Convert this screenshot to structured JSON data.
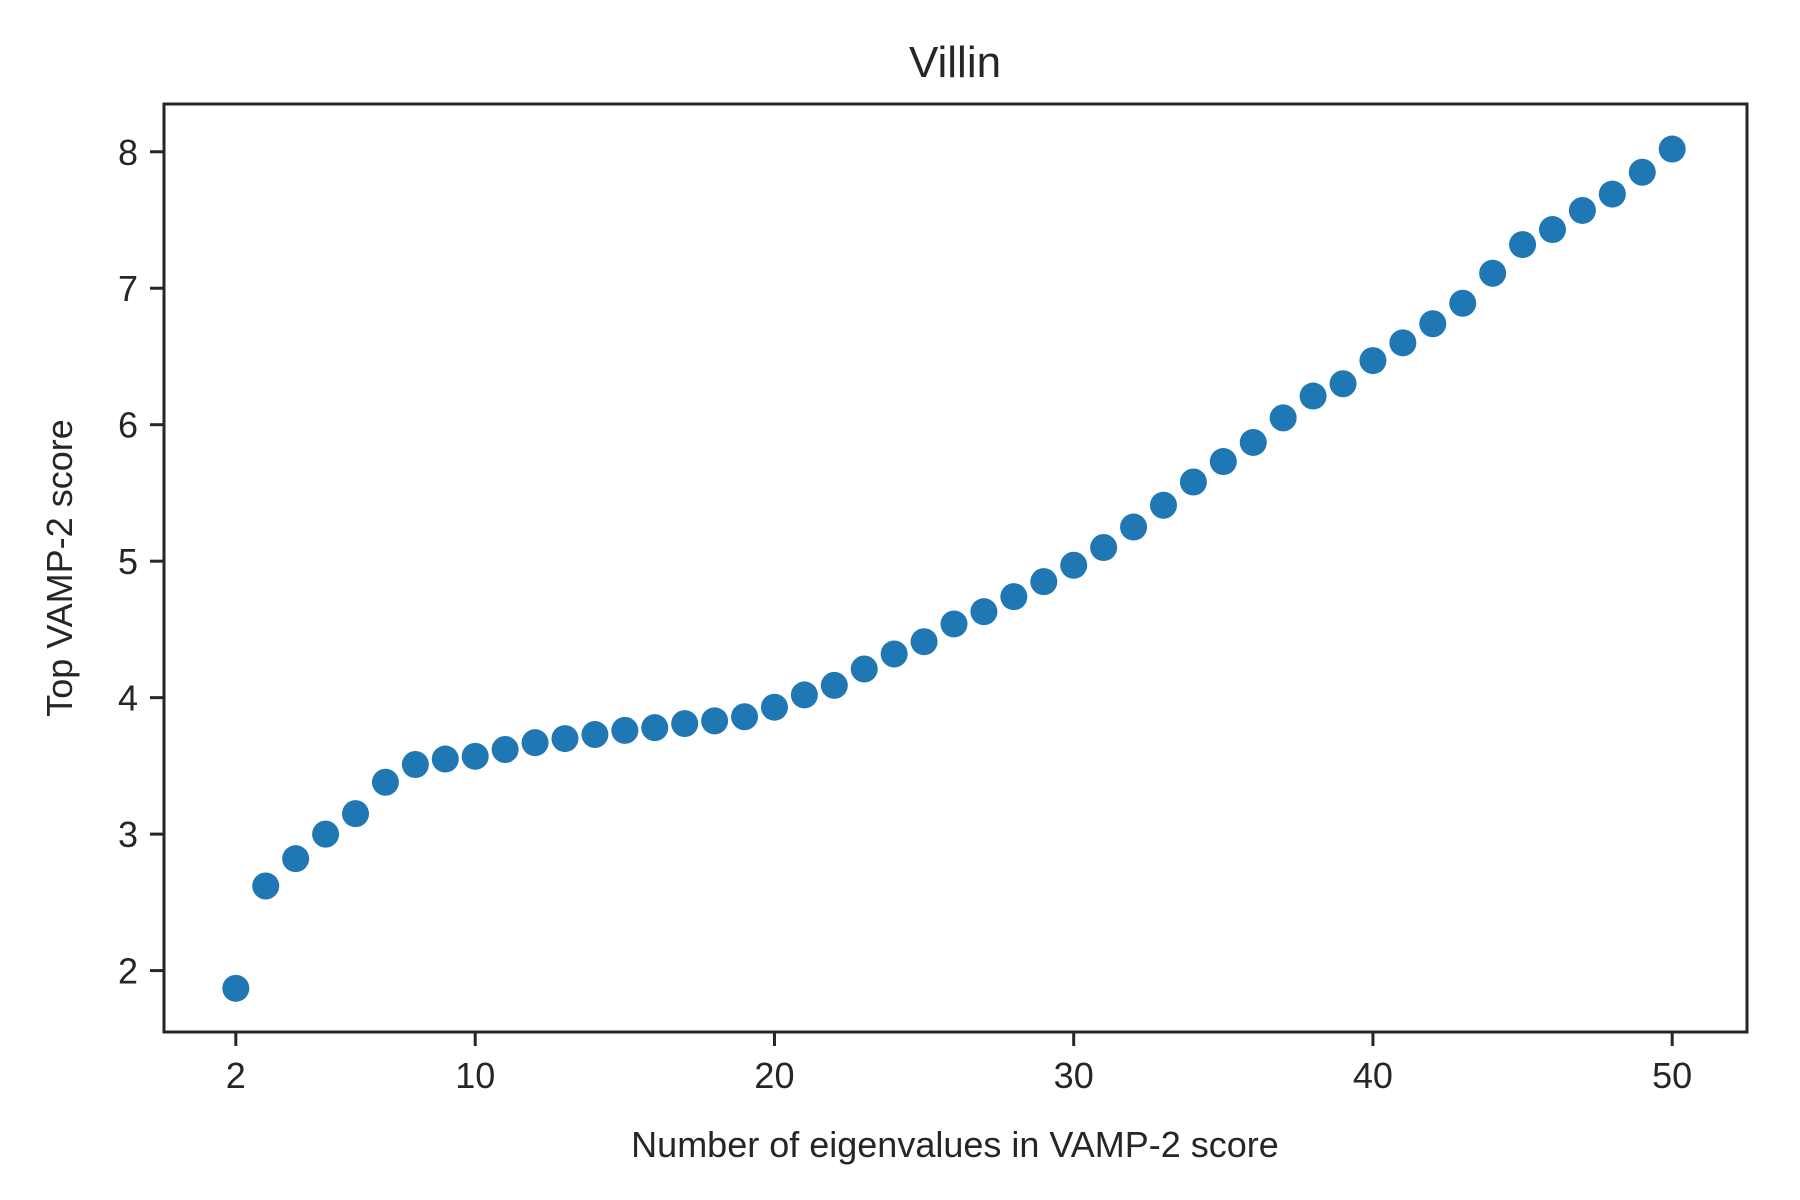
{
  "chart_data": {
    "type": "scatter",
    "title": "Villin",
    "xlabel": "Number of eigenvalues in VAMP-2 score",
    "ylabel": "Top VAMP-2 score",
    "xlim": [
      -0.4,
      52.5
    ],
    "ylim": [
      1.55,
      8.35
    ],
    "xticks": [
      2,
      10,
      20,
      30,
      40,
      50
    ],
    "yticks": [
      2,
      3,
      4,
      5,
      6,
      7,
      8
    ],
    "grid": false,
    "marker_color": "#1f77b4",
    "axis_color": "#262626",
    "series": [
      {
        "x": [
          2,
          3,
          4,
          5,
          6,
          7,
          8,
          9,
          10,
          11,
          12,
          13,
          14,
          15,
          16,
          17,
          18,
          19,
          20,
          21,
          22,
          23,
          24,
          25,
          26,
          27,
          28,
          29,
          30,
          31,
          32,
          33,
          34,
          35,
          36,
          37,
          38,
          39,
          40,
          41,
          42,
          43,
          44,
          45,
          46,
          47,
          48,
          49,
          50
        ],
        "y": [
          1.87,
          2.62,
          2.82,
          3.0,
          3.15,
          3.38,
          3.51,
          3.55,
          3.57,
          3.62,
          3.67,
          3.7,
          3.73,
          3.76,
          3.78,
          3.81,
          3.83,
          3.86,
          3.93,
          4.02,
          4.09,
          4.21,
          4.32,
          4.41,
          4.54,
          4.63,
          4.74,
          4.85,
          4.97,
          5.1,
          5.25,
          5.41,
          5.58,
          5.73,
          5.87,
          6.05,
          6.21,
          6.3,
          6.47,
          6.6,
          6.74,
          6.89,
          7.11,
          7.32,
          7.43,
          7.57,
          7.69,
          7.85,
          8.02
        ]
      }
    ]
  }
}
